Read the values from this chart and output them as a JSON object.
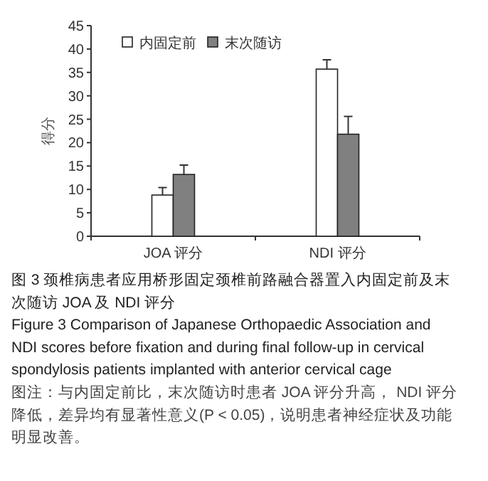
{
  "chart_data": {
    "type": "bar",
    "title": "图 3 颈椎病患者应用桥形固定颈椎前路融合器置入内固定前及末次随访 JOA 及 NDI 评分",
    "subtitle": "Figure 3    Comparison of Japanese Orthopaedic Association and NDI scores before fixation and during final follow-up in cervical spondylosis patients implanted with anterior cervical cage",
    "annotations": [
      "图注：与内固定前比，末次随访时患者 JOA 评分升高， NDI 评分降低，差异均有显著性意义(P < 0.05)，说明患者神经症状及功能明显改善。"
    ],
    "ylabel": "得分",
    "categories": [
      "JOA 评分",
      "NDI 评分"
    ],
    "series": [
      {
        "name": "内固定前",
        "color": "#ffffff",
        "values": [
          8.8,
          35.7
        ],
        "errors": [
          [
            8.8,
            10.4
          ],
          [
            35.7,
            37.7
          ]
        ]
      },
      {
        "name": "末次随访",
        "color": "#808080",
        "values": [
          13.2,
          21.8
        ],
        "errors": [
          [
            13.2,
            15.2
          ],
          [
            21.8,
            25.6
          ]
        ]
      }
    ],
    "ylim": [
      0,
      45
    ],
    "yticks": [
      0,
      5,
      10,
      15,
      20,
      25,
      30,
      35,
      40,
      45
    ],
    "grid": false,
    "legend": "top left"
  }
}
